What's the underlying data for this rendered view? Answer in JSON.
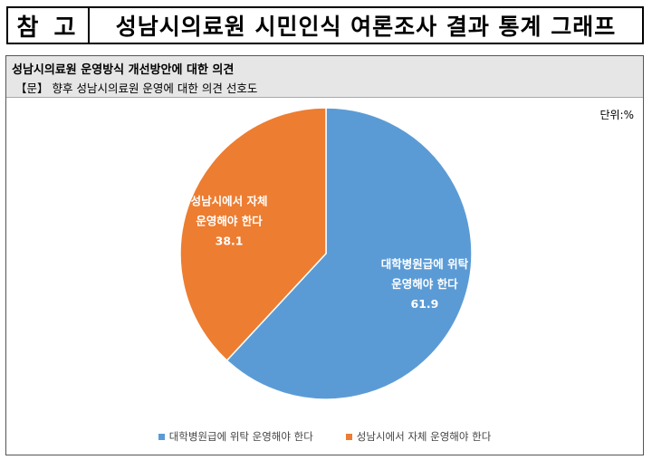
{
  "header": {
    "tag": "참 고",
    "title": "성남시의료원 시민인식 여론조사 결과 통계 그래프"
  },
  "section": {
    "title": "성남시의료원 운영방식 개선방안에 대한 의견",
    "subtitle": "【문】 향후 성남시의료원 운영에 대한 의견 선호도",
    "unit": "단위:%"
  },
  "colors": {
    "series_a": "#5b9bd5",
    "series_b": "#ed7d31",
    "label": "#ffffff"
  },
  "chart_data": {
    "type": "pie",
    "start_angle_deg": 0,
    "direction": "clockwise",
    "slices": [
      {
        "name": "대학병원급에 위탁 운영해야 한다",
        "label_lines": [
          "대학병원급에 위탁",
          "운영해야 한다"
        ],
        "value": 61.9,
        "color": "#5b9bd5"
      },
      {
        "name": "성남시에서 자체 운영해야 한다",
        "label_lines": [
          "성남시에서 자체",
          "운영해야 한다"
        ],
        "value": 38.1,
        "color": "#ed7d31"
      }
    ],
    "legend_position": "bottom"
  }
}
